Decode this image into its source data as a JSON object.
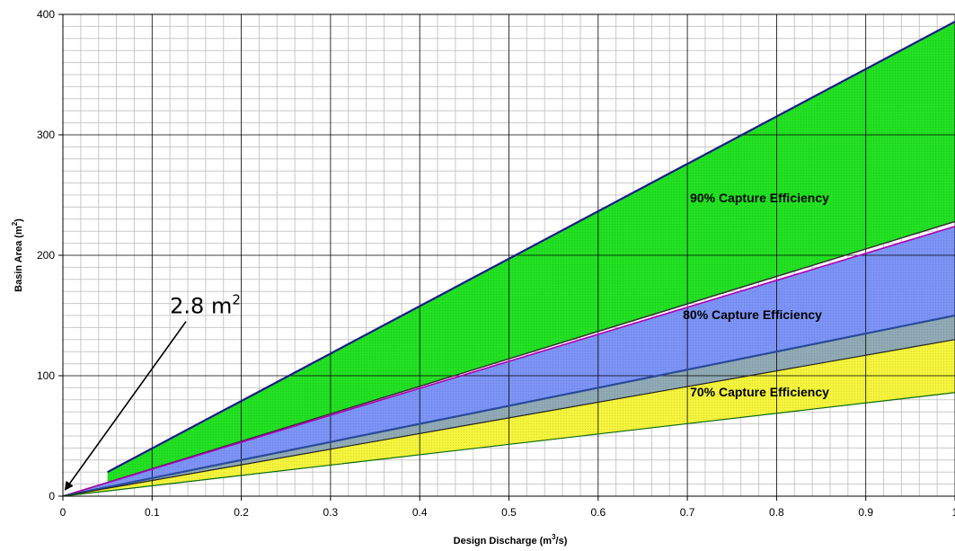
{
  "chart_data": {
    "type": "area",
    "title": "",
    "xlabel": "Design Discharge (m",
    "xlabel_sup": "3",
    "xlabel_tail": "/s)",
    "ylabel": "Basin Area (m",
    "ylabel_sup": "2",
    "ylabel_tail": ")",
    "xlim": [
      0,
      1.0
    ],
    "ylim": [
      0,
      400
    ],
    "x_ticks": [
      0,
      0.1,
      0.2,
      0.3,
      0.4,
      0.5,
      0.6,
      0.7,
      0.8,
      0.9,
      1
    ],
    "x_tick_labels": [
      "0",
      "0.1",
      "0.2",
      "0.3",
      "0.4",
      "0.5",
      "0.6",
      "0.7",
      "0.8",
      "0.9",
      "1"
    ],
    "y_ticks": [
      0,
      100,
      200,
      300,
      400
    ],
    "y_tick_labels": [
      "0",
      "100",
      "200",
      "300",
      "400"
    ],
    "grid": true,
    "lines": [
      {
        "key": "l90u",
        "color": "#1a1a8c",
        "width": 2.2,
        "x": [
          0.05,
          1.0
        ],
        "y": [
          20,
          394
        ]
      },
      {
        "key": "l90l",
        "color": "#333333",
        "width": 1.5,
        "x": [
          0,
          1.0
        ],
        "y": [
          0,
          228
        ]
      },
      {
        "key": "l80u",
        "color": "#b000b0",
        "width": 1.6,
        "x": [
          0,
          1.0
        ],
        "y": [
          0,
          224
        ]
      },
      {
        "key": "l80l",
        "color": "#2a4a9a",
        "width": 2.2,
        "x": [
          0,
          1.0
        ],
        "y": [
          0,
          150
        ]
      },
      {
        "key": "l70u",
        "color": "#222222",
        "width": 1.2,
        "x": [
          0,
          1.0
        ],
        "y": [
          0,
          130
        ]
      },
      {
        "key": "l70l",
        "color": "#0a6a0a",
        "width": 1.2,
        "x": [
          0,
          1.0
        ],
        "y": [
          0,
          86
        ]
      }
    ],
    "bands": [
      {
        "key": "band90",
        "fill": "#22e022",
        "upper": "l90u",
        "lower": "l90l",
        "label": "90% Capture Efficiency",
        "label_x": 0.703,
        "label_y": 244
      },
      {
        "key": "band80",
        "fill": "#7c93f6",
        "upper": "l80u",
        "lower": "l80l",
        "label": "80% Capture Efficiency",
        "label_x": 0.695,
        "label_y": 147
      },
      {
        "key": "bandgap",
        "fill": "#8faab4",
        "upper": "l80l",
        "lower": "l70u",
        "label": "",
        "label_x": 0,
        "label_y": 0
      },
      {
        "key": "band70",
        "fill": "#f4f43c",
        "upper": "l70u",
        "lower": "l70l",
        "label": "70% Capture Efficiency",
        "label_x": 0.703,
        "label_y": 83
      }
    ],
    "annotation": {
      "text": "2.8 m",
      "sup": "2",
      "point_x": 0.0,
      "point_y": 2.8,
      "text_x": 0.12,
      "text_y": 152
    }
  }
}
